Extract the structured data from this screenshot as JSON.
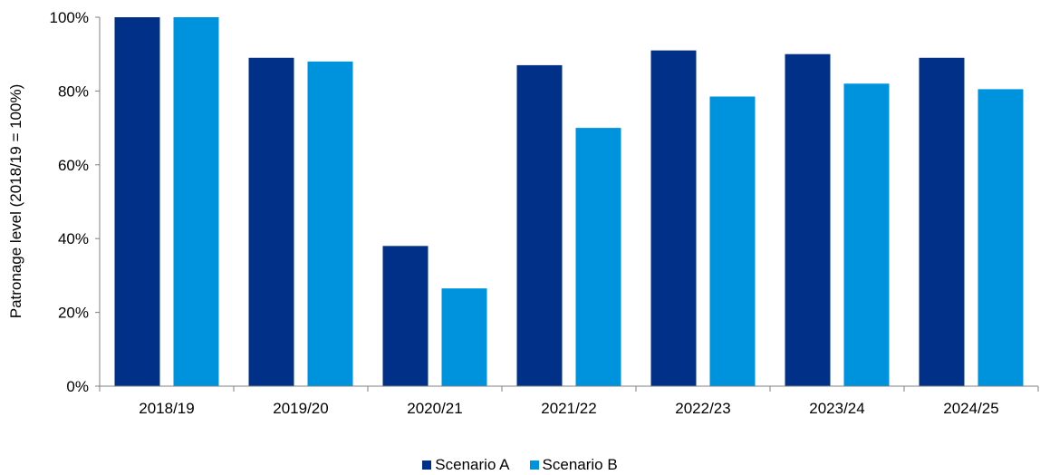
{
  "chart_data": {
    "type": "bar",
    "ylabel": "Patronage level (2018/19 = 100%)",
    "xlabel": "",
    "categories": [
      "2018/19",
      "2019/20",
      "2020/21",
      "2021/22",
      "2022/23",
      "2023/24",
      "2024/25"
    ],
    "series": [
      {
        "name": "Scenario A",
        "color": "#003087",
        "values": [
          100,
          89,
          38,
          87,
          91,
          90,
          89
        ]
      },
      {
        "name": "Scenario B",
        "color": "#0093DD",
        "values": [
          100,
          88,
          26.5,
          70,
          78.5,
          82,
          80.5
        ]
      }
    ],
    "ylim": [
      0,
      100
    ],
    "yticks": [
      "0%",
      "20%",
      "40%",
      "60%",
      "80%",
      "100%"
    ],
    "ytick_values": [
      0,
      20,
      40,
      60,
      80,
      100
    ],
    "grid": false,
    "legend_position": "bottom-center"
  }
}
